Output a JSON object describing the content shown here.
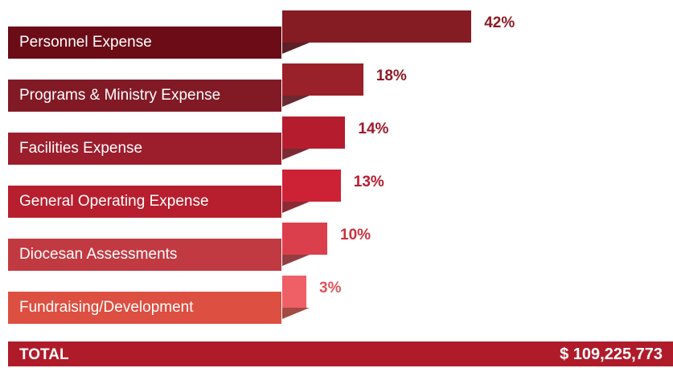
{
  "chart_data": {
    "type": "bar",
    "orientation": "horizontal",
    "categories": [
      "Personnel Expense",
      "Programs & Ministry Expense",
      "Facilities Expense",
      "General Operating Expense",
      "Diocesan Assessments",
      "Fundraising/Development"
    ],
    "values": [
      42,
      18,
      14,
      13,
      10,
      3
    ],
    "value_labels": [
      "42%",
      "18%",
      "14%",
      "13%",
      "10%",
      "3%"
    ],
    "unit": "%",
    "colors": {
      "label_bg": [
        "#6c0c17",
        "#821a26",
        "#9c1d2c",
        "#b71e2e",
        "#c23a41",
        "#dc4f41"
      ],
      "bar": [
        "#851b23",
        "#9a2029",
        "#b51c2e",
        "#cd2236",
        "#dc3f4c",
        "#ee5f66"
      ],
      "pct_text": [
        "#8c1c25",
        "#8c1c25",
        "#a0182b",
        "#b81d30",
        "#c8323f",
        "#e0555b"
      ]
    }
  },
  "total": {
    "label": "TOTAL",
    "value": "$  109,225,773",
    "color": "#b01b2a"
  }
}
